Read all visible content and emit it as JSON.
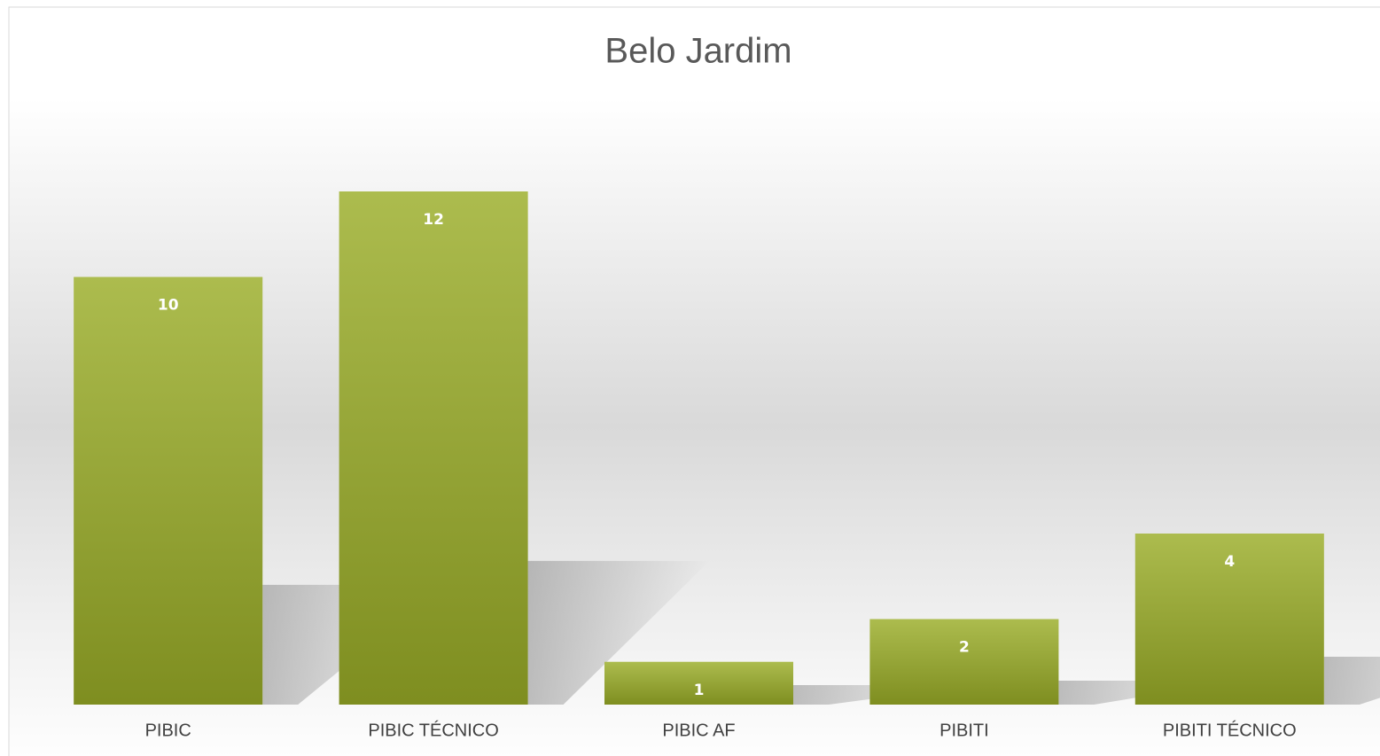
{
  "chart_data": {
    "type": "bar",
    "title": "Belo Jardim",
    "categories": [
      "PIBIC",
      "PIBIC TÉCNICO",
      "PIBIC AF",
      "PIBITI",
      "PIBITI TÉCNICO"
    ],
    "values": [
      10,
      12,
      1,
      2,
      4
    ],
    "color": "#9aad27"
  }
}
